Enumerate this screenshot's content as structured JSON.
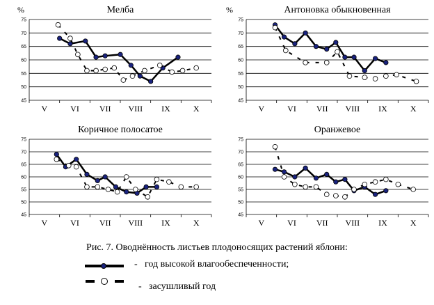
{
  "caption": "Рис. 7. Оводнённость листьев плодоносящих растений яблони:",
  "legend": {
    "wet_dash": "-",
    "wet_label": "год высокой влагообеспеченности;",
    "dry_dash": "-",
    "dry_label": "засушливый год"
  },
  "colors": {
    "wet_marker": "#1a237e",
    "line": "#000000",
    "dry_marker": "#ffffff"
  },
  "chart_data": [
    {
      "type": "line",
      "title": "Мелба",
      "unit": "%",
      "ylim": [
        45,
        75
      ],
      "yticks": [
        45,
        50,
        55,
        60,
        65,
        70,
        75
      ],
      "xticks": [
        "V",
        "VI",
        "VII",
        "VIII",
        "IX",
        "X"
      ],
      "series": [
        {
          "key": "wet",
          "x": [
            5.5,
            5.85,
            6.35,
            6.7,
            7.0,
            7.5,
            7.85,
            8.15,
            8.5,
            8.9,
            9.4
          ],
          "y": [
            68,
            66,
            67,
            61,
            61.5,
            62,
            58,
            54,
            52,
            57,
            61
          ]
        },
        {
          "key": "dry",
          "x": [
            5.45,
            5.85,
            6.1,
            6.4,
            6.7,
            7.0,
            7.3,
            7.6,
            8.0,
            8.4,
            8.8,
            9.0,
            9.25,
            9.55
          ]
        }
      ]
    }
  ]
}
